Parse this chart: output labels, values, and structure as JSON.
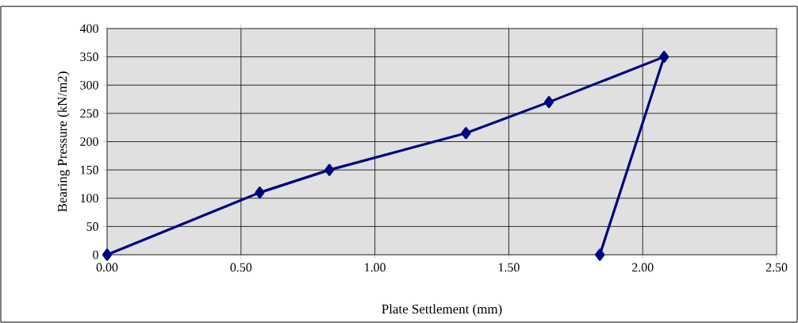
{
  "chart_data": {
    "type": "line",
    "xlabel": "Plate Settlement (mm)",
    "ylabel": "Bearing Pressure (kN/m2)",
    "x": [
      0,
      0.57,
      0.83,
      1.34,
      1.65,
      2.08,
      1.84
    ],
    "series": [
      {
        "color": "#000080",
        "values": [
          0,
          110,
          150,
          215,
          270,
          350,
          0
        ]
      }
    ],
    "xlim": [
      0,
      2.5
    ],
    "ylim": [
      0,
      400
    ],
    "xticks": [
      {
        "value": 0,
        "label": "0.00"
      },
      {
        "value": 0.5,
        "label": "0.50"
      },
      {
        "value": 1,
        "label": "1.00"
      },
      {
        "value": 1.5,
        "label": "1.50"
      },
      {
        "value": 2,
        "label": "2.00"
      },
      {
        "value": 2.5,
        "label": "2.50"
      }
    ],
    "yticks": [
      0,
      50,
      100,
      150,
      200,
      250,
      300,
      350,
      400
    ],
    "grid": true,
    "marker": "diamond",
    "line_style": "solid"
  }
}
